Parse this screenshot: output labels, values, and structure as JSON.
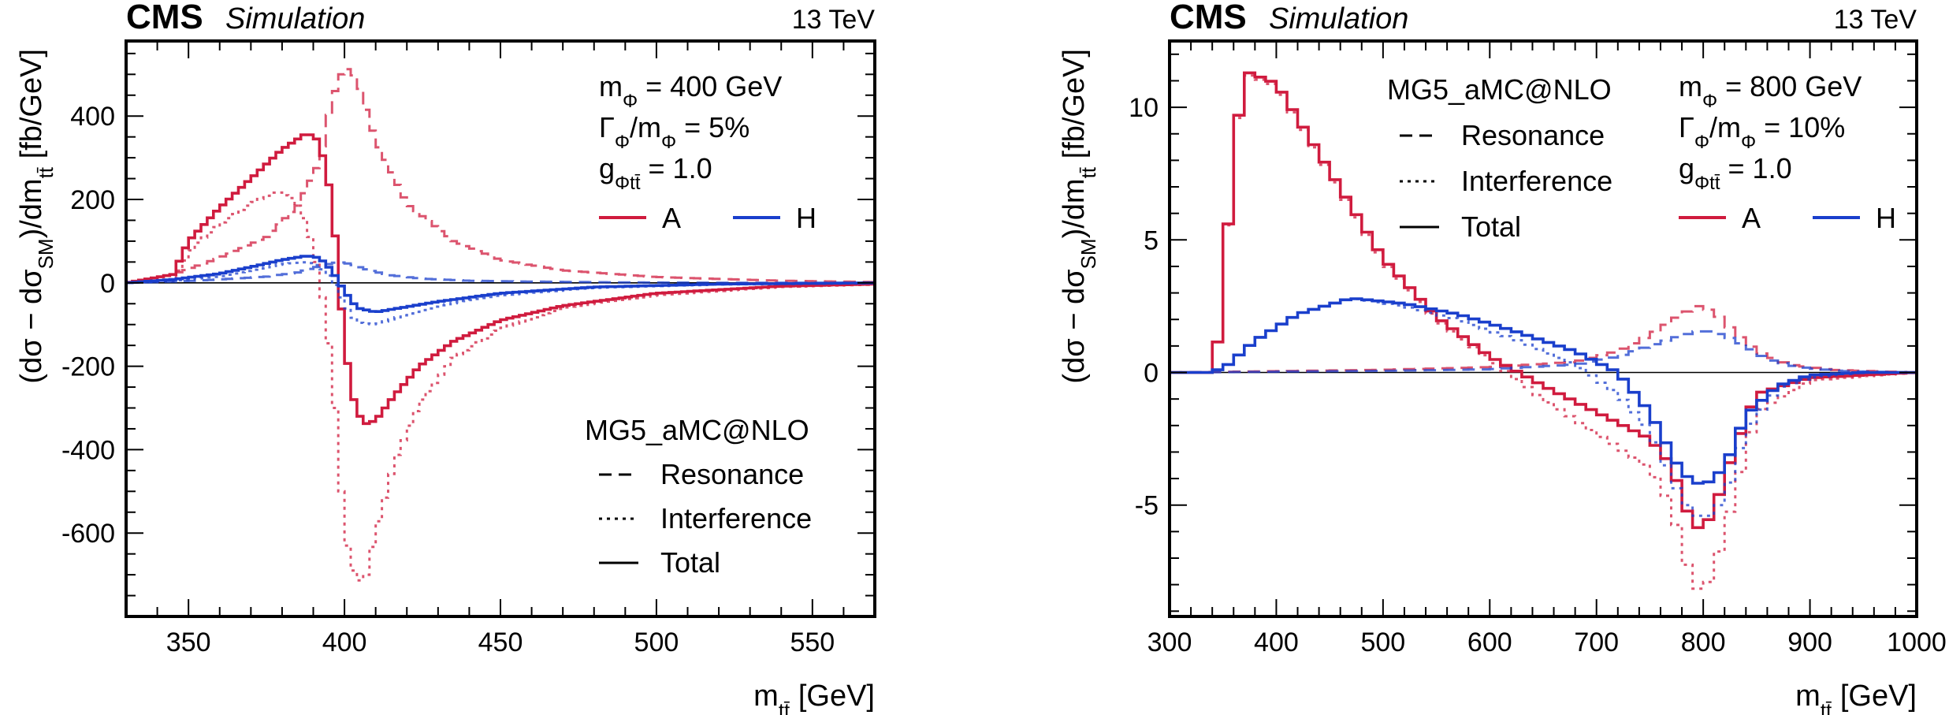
{
  "colors": {
    "A": "#d01b3e",
    "H": "#1a3fcc",
    "zero_line": "#000000"
  },
  "legend_text": {
    "generator": "MG5_aMC@NLO",
    "styles": [
      "Resonance",
      "Interference",
      "Total"
    ],
    "series": [
      "A",
      "H"
    ]
  },
  "chart_data": [
    {
      "type": "line",
      "experiment": "CMS",
      "status": "Simulation",
      "energy": "13 TeV",
      "xlabel": "m_tt̄ [GeV]",
      "ylabel": "(dσ − dσ_SM)/dm_tt̄  [fb/GeV]",
      "xlim": [
        330,
        570
      ],
      "ylim": [
        -800,
        580
      ],
      "xticks": [
        350,
        400,
        450,
        500,
        550
      ],
      "yticks": [
        -600,
        -400,
        -200,
        0,
        200,
        400
      ],
      "params": [
        "m_Φ = 400 GeV",
        "Γ_Φ/m_Φ = 5%",
        "g_Φtt̄ = 1.0"
      ],
      "legend_placement": "right",
      "series": [
        {
          "name": "A",
          "style": "Resonance",
          "x": [
            330,
            345,
            360,
            375,
            385,
            392,
            396,
            400,
            404,
            410,
            420,
            435,
            450,
            470,
            500,
            540,
            570
          ],
          "y": [
            0,
            20,
            60,
            110,
            185,
            290,
            440,
            520,
            490,
            340,
            190,
            100,
            55,
            30,
            14,
            5,
            2
          ]
        },
        {
          "name": "A",
          "style": "Interference",
          "x": [
            330,
            345,
            352,
            360,
            370,
            378,
            384,
            388,
            392,
            396,
            400,
            404,
            407,
            410,
            416,
            424,
            435,
            450,
            470,
            500,
            540,
            570
          ],
          "y": [
            0,
            5,
            90,
            140,
            190,
            220,
            200,
            140,
            20,
            -200,
            -600,
            -720,
            -700,
            -600,
            -430,
            -290,
            -180,
            -110,
            -60,
            -30,
            -10,
            -4
          ]
        },
        {
          "name": "A",
          "style": "Total",
          "x": [
            330,
            345,
            350,
            360,
            370,
            380,
            388,
            392,
            396,
            400,
            403,
            406,
            410,
            416,
            424,
            435,
            450,
            470,
            500,
            540,
            570
          ],
          "y": [
            0,
            20,
            100,
            180,
            250,
            320,
            360,
            340,
            200,
            -150,
            -280,
            -340,
            -330,
            -270,
            -200,
            -140,
            -90,
            -55,
            -25,
            -8,
            -3
          ]
        },
        {
          "name": "H",
          "style": "Resonance",
          "x": [
            330,
            345,
            360,
            375,
            385,
            392,
            398,
            402,
            408,
            415,
            425,
            440,
            460,
            490,
            530,
            570
          ],
          "y": [
            0,
            3,
            8,
            15,
            25,
            40,
            50,
            45,
            30,
            18,
            10,
            5,
            3,
            1,
            0,
            0
          ]
        },
        {
          "name": "H",
          "style": "Interference",
          "x": [
            330,
            345,
            360,
            370,
            380,
            388,
            392,
            396,
            400,
            404,
            410,
            418,
            430,
            450,
            480,
            520,
            570
          ],
          "y": [
            0,
            5,
            15,
            30,
            45,
            50,
            40,
            10,
            -50,
            -95,
            -100,
            -80,
            -55,
            -30,
            -12,
            -4,
            -1
          ]
        },
        {
          "name": "H",
          "style": "Total",
          "x": [
            330,
            345,
            360,
            370,
            380,
            388,
            392,
            396,
            400,
            404,
            410,
            418,
            430,
            450,
            480,
            520,
            570
          ],
          "y": [
            0,
            8,
            22,
            38,
            55,
            65,
            60,
            30,
            -20,
            -60,
            -70,
            -60,
            -45,
            -25,
            -10,
            -3,
            0
          ]
        }
      ]
    },
    {
      "type": "line",
      "experiment": "CMS",
      "status": "Simulation",
      "energy": "13 TeV",
      "xlabel": "m_tt̄ [GeV]",
      "ylabel": "(dσ − dσ_SM)/dm_tt̄  [fb/GeV]",
      "xlim": [
        300,
        1000
      ],
      "ylim": [
        -9.2,
        12.5
      ],
      "xticks": [
        300,
        400,
        500,
        600,
        700,
        800,
        900,
        1000
      ],
      "yticks": [
        -5,
        0,
        5,
        10
      ],
      "params": [
        "m_Φ = 800 GeV",
        "Γ_Φ/m_Φ = 10%",
        "g_Φtt̄ = 1.0"
      ],
      "legend_placement": "top-right",
      "series": [
        {
          "name": "A",
          "style": "Resonance",
          "x": [
            300,
            340,
            400,
            500,
            600,
            680,
            720,
            750,
            780,
            795,
            810,
            830,
            850,
            880,
            920,
            1000
          ],
          "y": [
            0,
            0.02,
            0.05,
            0.1,
            0.2,
            0.4,
            0.8,
            1.4,
            2.2,
            2.5,
            2.3,
            1.5,
            0.8,
            0.3,
            0.1,
            0.0
          ]
        },
        {
          "name": "A",
          "style": "Interference",
          "x": [
            300,
            340,
            350,
            360,
            375,
            400,
            450,
            500,
            550,
            600,
            650,
            700,
            750,
            770,
            790,
            800,
            810,
            830,
            850,
            900,
            1000
          ],
          "y": [
            0,
            0,
            2.3,
            8.8,
            11.2,
            10.8,
            7.5,
            4.2,
            2.0,
            0.5,
            -1.0,
            -2.3,
            -3.6,
            -5.0,
            -8.0,
            -8.3,
            -7.5,
            -4.5,
            -1.5,
            -0.3,
            0.0
          ]
        },
        {
          "name": "A",
          "style": "Total",
          "x": [
            300,
            340,
            350,
            360,
            375,
            400,
            450,
            500,
            550,
            600,
            650,
            700,
            750,
            770,
            790,
            800,
            810,
            830,
            850,
            900,
            1000
          ],
          "y": [
            0,
            0,
            2.3,
            8.9,
            11.3,
            10.9,
            7.6,
            4.3,
            2.1,
            0.6,
            -0.5,
            -1.5,
            -2.5,
            -3.5,
            -5.8,
            -5.9,
            -5.2,
            -2.8,
            -0.8,
            -0.2,
            0.0
          ]
        },
        {
          "name": "H",
          "style": "Resonance",
          "x": [
            300,
            340,
            400,
            500,
            600,
            680,
            720,
            750,
            780,
            800,
            820,
            840,
            860,
            890,
            930,
            1000
          ],
          "y": [
            0,
            0.01,
            0.03,
            0.06,
            0.12,
            0.3,
            0.6,
            1.0,
            1.4,
            1.6,
            1.4,
            1.0,
            0.5,
            0.2,
            0.05,
            0.0
          ]
        },
        {
          "name": "H",
          "style": "Interference",
          "x": [
            300,
            340,
            355,
            380,
            420,
            470,
            520,
            570,
            620,
            680,
            720,
            750,
            780,
            800,
            820,
            840,
            870,
            900,
            950,
            1000
          ],
          "y": [
            0,
            0,
            0.3,
            1.2,
            2.2,
            2.8,
            2.5,
            2.0,
            1.3,
            0.3,
            -0.8,
            -2.2,
            -4.8,
            -5.6,
            -4.8,
            -2.2,
            -0.6,
            -0.2,
            0.0,
            0.0
          ]
        },
        {
          "name": "H",
          "style": "Total",
          "x": [
            300,
            340,
            355,
            380,
            420,
            470,
            520,
            570,
            620,
            680,
            720,
            750,
            780,
            800,
            820,
            840,
            870,
            900,
            950,
            1000
          ],
          "y": [
            0,
            0,
            0.3,
            1.2,
            2.2,
            2.8,
            2.6,
            2.2,
            1.6,
            0.8,
            0.0,
            -1.5,
            -3.8,
            -4.3,
            -3.6,
            -1.6,
            -0.5,
            -0.1,
            0.0,
            0.0
          ]
        }
      ]
    }
  ]
}
